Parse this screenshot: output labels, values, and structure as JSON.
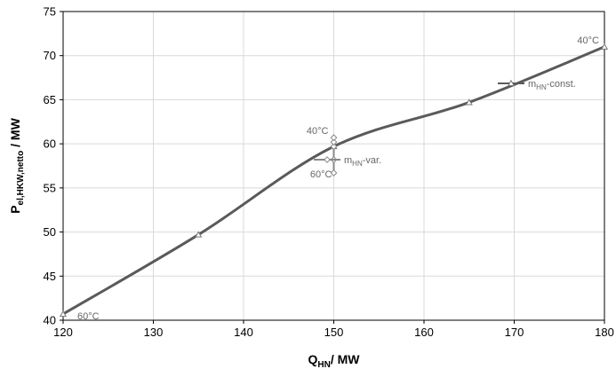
{
  "chart_data": {
    "type": "line",
    "xlim": [
      120,
      180
    ],
    "ylim": [
      40,
      75
    ],
    "x_ticks": [
      120,
      130,
      140,
      150,
      160,
      170,
      180
    ],
    "y_ticks": [
      40,
      45,
      50,
      55,
      60,
      65,
      70,
      75
    ],
    "grid": true,
    "xlabel": {
      "main": "Q",
      "sub": "HN",
      "rest": "/ MW"
    },
    "ylabel": {
      "main": "P",
      "sub": "el,HKW,netto",
      "rest": " / MW"
    },
    "colors": {
      "line": "#5a5a5a",
      "grid": "#d9d9d9",
      "annotation": "#888888"
    },
    "series": [
      {
        "legend": {
          "main": "m",
          "sub": "HN",
          "rest": "-const.",
          "marker": "triangle"
        },
        "points": [
          {
            "x": 120,
            "y": 40.7
          },
          {
            "x": 135,
            "y": 49.7
          },
          {
            "x": 150,
            "y": 59.7
          },
          {
            "x": 165,
            "y": 64.7
          },
          {
            "x": 180,
            "y": 71.0
          }
        ]
      },
      {
        "legend": {
          "main": "m",
          "sub": "HN",
          "rest": "-var.",
          "marker": "diamond"
        },
        "points": [
          {
            "x": 150,
            "y": 56.7
          },
          {
            "x": 150,
            "y": 58.2
          },
          {
            "x": 150,
            "y": 59.7
          },
          {
            "x": 150,
            "y": 60.2
          },
          {
            "x": 150,
            "y": 60.7
          }
        ]
      }
    ],
    "annotations": [
      {
        "text": "60°C",
        "x": 120,
        "y": 40.7,
        "anchor": "right-below"
      },
      {
        "text": "40°C",
        "x": 150,
        "y": 60.7,
        "anchor": "left-above"
      },
      {
        "text": "60°C",
        "x": 150,
        "y": 56.7,
        "anchor": "left-below"
      },
      {
        "text": "40°C",
        "x": 180,
        "y": 71.0,
        "anchor": "left-above"
      }
    ]
  }
}
